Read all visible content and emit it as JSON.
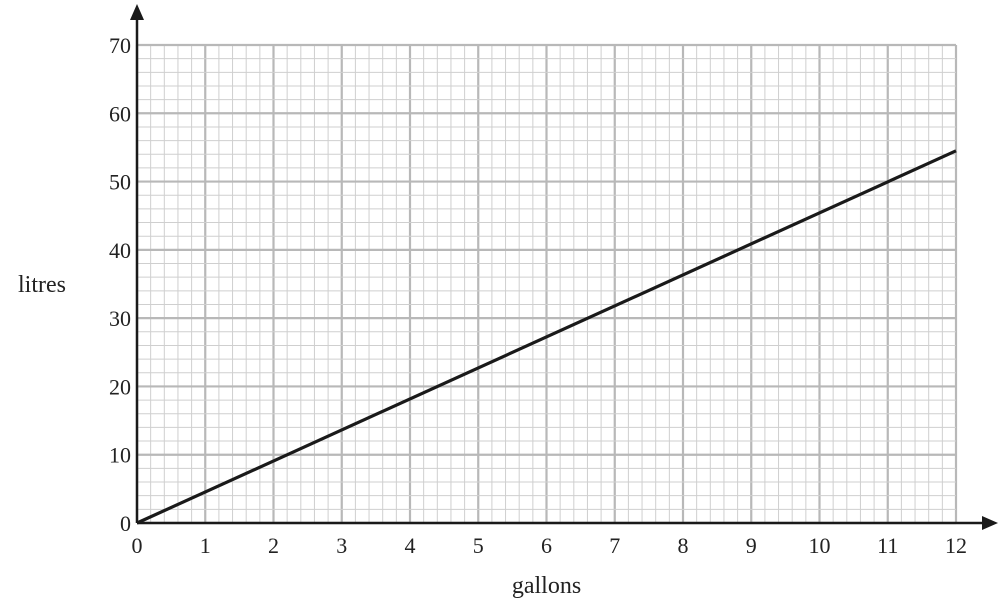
{
  "chart_data": {
    "type": "line",
    "xlabel": "gallons",
    "ylabel": "litres",
    "xlim": [
      0,
      12
    ],
    "ylim": [
      0,
      70
    ],
    "x_ticks": [
      "0",
      "1",
      "2",
      "3",
      "4",
      "5",
      "6",
      "7",
      "8",
      "9",
      "10",
      "11",
      "12"
    ],
    "y_ticks": [
      "0",
      "10",
      "20",
      "30",
      "40",
      "50",
      "60",
      "70"
    ],
    "grid": true,
    "minor_grid_per_major": 5,
    "series": [
      {
        "x": [
          0,
          12
        ],
        "y": [
          0,
          54.5
        ]
      }
    ],
    "colors": {
      "line": "#1a1a1a",
      "grid_minor": "#cfcfcf",
      "grid_major": "#b8b8b8",
      "axis": "#1a1a1a"
    }
  }
}
